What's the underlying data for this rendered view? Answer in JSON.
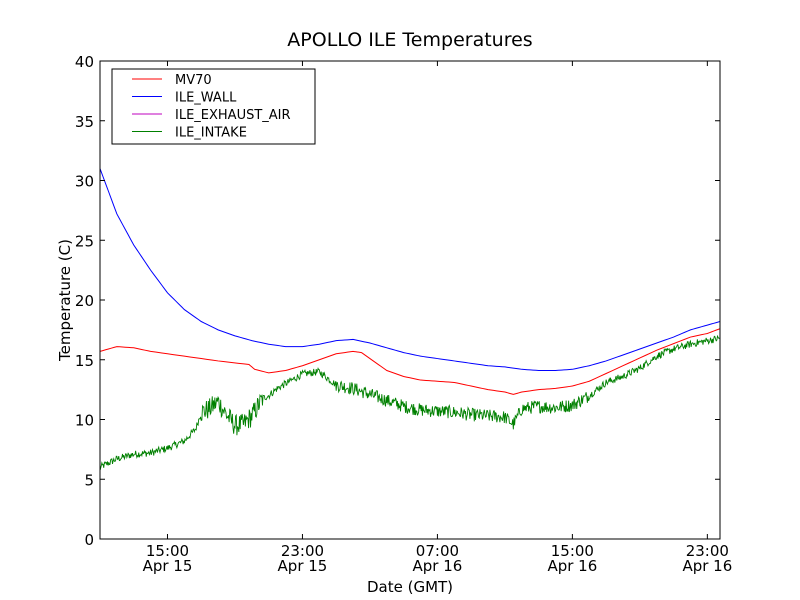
{
  "chart_data": {
    "type": "line",
    "title": "APOLLO ILE Temperatures",
    "xlabel": "Date (GMT)",
    "ylabel": "Temperature (C)",
    "ylim": [
      0,
      40
    ],
    "yticks": [
      0,
      5,
      10,
      15,
      20,
      25,
      30,
      35,
      40
    ],
    "xlim": [
      "2014-04-15T11:00",
      "2014-04-16T23:45"
    ],
    "xticks": [
      {
        "x": "2014-04-15T15:00",
        "time": "15:00",
        "date": "Apr 15"
      },
      {
        "x": "2014-04-15T23:00",
        "time": "23:00",
        "date": "Apr 15"
      },
      {
        "x": "2014-04-16T07:00",
        "time": "07:00",
        "date": "Apr 16"
      },
      {
        "x": "2014-04-16T15:00",
        "time": "15:00",
        "date": "Apr 16"
      },
      {
        "x": "2014-04-16T23:00",
        "time": "23:00",
        "date": "Apr 16"
      }
    ],
    "grid": false,
    "legend_position": "top-left",
    "series": [
      {
        "name": "MV70",
        "color": "#ff0000",
        "x": [
          "2014-04-15T11:00",
          "2014-04-15T12:00",
          "2014-04-15T13:00",
          "2014-04-15T14:00",
          "2014-04-15T16:00",
          "2014-04-15T18:00",
          "2014-04-15T19:50",
          "2014-04-15T20:10",
          "2014-04-15T21:00",
          "2014-04-15T22:00",
          "2014-04-15T23:00",
          "2014-04-16T00:00",
          "2014-04-16T01:00",
          "2014-04-16T02:00",
          "2014-04-16T02:30",
          "2014-04-16T03:00",
          "2014-04-16T04:00",
          "2014-04-16T05:00",
          "2014-04-16T06:00",
          "2014-04-16T07:00",
          "2014-04-16T08:00",
          "2014-04-16T09:00",
          "2014-04-16T10:00",
          "2014-04-16T11:00",
          "2014-04-16T11:30",
          "2014-04-16T12:00",
          "2014-04-16T13:00",
          "2014-04-16T14:00",
          "2014-04-16T15:00",
          "2014-04-16T16:00",
          "2014-04-16T18:00",
          "2014-04-16T20:00",
          "2014-04-16T22:00",
          "2014-04-16T23:00",
          "2014-04-16T23:45"
        ],
        "y": [
          15.7,
          16.1,
          16.0,
          15.7,
          15.3,
          14.9,
          14.6,
          14.2,
          13.9,
          14.1,
          14.5,
          15.0,
          15.5,
          15.7,
          15.6,
          15.1,
          14.1,
          13.6,
          13.3,
          13.2,
          13.1,
          12.8,
          12.5,
          12.3,
          12.1,
          12.3,
          12.5,
          12.6,
          12.8,
          13.2,
          14.5,
          15.8,
          16.9,
          17.2,
          17.6
        ]
      },
      {
        "name": "ILE_WALL",
        "color": "#0000ff",
        "x": [
          "2014-04-15T11:00",
          "2014-04-15T12:00",
          "2014-04-15T13:00",
          "2014-04-15T14:00",
          "2014-04-15T15:00",
          "2014-04-15T16:00",
          "2014-04-15T17:00",
          "2014-04-15T18:00",
          "2014-04-15T19:00",
          "2014-04-15T20:00",
          "2014-04-15T21:00",
          "2014-04-15T22:00",
          "2014-04-15T23:00",
          "2014-04-16T00:00",
          "2014-04-16T01:00",
          "2014-04-16T02:00",
          "2014-04-16T03:00",
          "2014-04-16T04:00",
          "2014-04-16T05:00",
          "2014-04-16T06:00",
          "2014-04-16T07:00",
          "2014-04-16T08:00",
          "2014-04-16T09:00",
          "2014-04-16T10:00",
          "2014-04-16T11:00",
          "2014-04-16T12:00",
          "2014-04-16T13:00",
          "2014-04-16T14:00",
          "2014-04-16T15:00",
          "2014-04-16T16:00",
          "2014-04-16T17:00",
          "2014-04-16T18:00",
          "2014-04-16T19:00",
          "2014-04-16T20:00",
          "2014-04-16T21:00",
          "2014-04-16T22:00",
          "2014-04-16T23:00",
          "2014-04-16T23:45"
        ],
        "y": [
          31.0,
          27.2,
          24.6,
          22.5,
          20.6,
          19.2,
          18.2,
          17.5,
          17.0,
          16.6,
          16.3,
          16.1,
          16.1,
          16.3,
          16.6,
          16.7,
          16.4,
          16.0,
          15.6,
          15.3,
          15.1,
          14.9,
          14.7,
          14.5,
          14.4,
          14.2,
          14.1,
          14.1,
          14.2,
          14.5,
          14.9,
          15.4,
          15.9,
          16.4,
          16.9,
          17.5,
          17.9,
          18.2
        ]
      },
      {
        "name": "ILE_EXHAUST_AIR",
        "color": "#bf00bf",
        "x": [],
        "y": []
      },
      {
        "name": "ILE_INTAKE",
        "color": "#008000",
        "x": [
          "2014-04-15T11:00",
          "2014-04-15T12:00",
          "2014-04-15T13:00",
          "2014-04-15T14:00",
          "2014-04-15T15:00",
          "2014-04-15T16:00",
          "2014-04-15T16:40",
          "2014-04-15T17:00",
          "2014-04-15T17:30",
          "2014-04-15T18:00",
          "2014-04-15T18:30",
          "2014-04-15T19:00",
          "2014-04-15T19:30",
          "2014-04-15T20:00",
          "2014-04-15T20:40",
          "2014-04-15T21:00",
          "2014-04-15T21:30",
          "2014-04-15T22:00",
          "2014-04-15T23:00",
          "2014-04-16T00:00",
          "2014-04-16T01:00",
          "2014-04-16T02:00",
          "2014-04-16T03:00",
          "2014-04-16T04:00",
          "2014-04-16T05:00",
          "2014-04-16T06:00",
          "2014-04-16T07:00",
          "2014-04-16T08:00",
          "2014-04-16T09:00",
          "2014-04-16T10:00",
          "2014-04-16T11:00",
          "2014-04-16T11:30",
          "2014-04-16T12:00",
          "2014-04-16T13:00",
          "2014-04-16T14:00",
          "2014-04-16T15:00",
          "2014-04-16T16:00",
          "2014-04-16T17:00",
          "2014-04-16T18:00",
          "2014-04-16T19:00",
          "2014-04-16T20:00",
          "2014-04-16T21:00",
          "2014-04-16T22:00",
          "2014-04-16T23:00",
          "2014-04-16T23:45"
        ],
        "y": [
          6.0,
          6.7,
          7.1,
          7.2,
          7.6,
          8.2,
          9.2,
          10.6,
          10.9,
          11.5,
          10.4,
          9.5,
          9.6,
          10.3,
          11.8,
          12.0,
          12.6,
          13.0,
          13.8,
          14.0,
          12.9,
          12.6,
          12.1,
          11.6,
          11.1,
          10.8,
          10.7,
          10.6,
          10.4,
          10.3,
          10.2,
          9.6,
          10.9,
          11.1,
          11.0,
          11.2,
          12.0,
          13.1,
          13.6,
          14.3,
          15.3,
          15.9,
          16.3,
          16.6,
          16.8
        ]
      }
    ]
  }
}
